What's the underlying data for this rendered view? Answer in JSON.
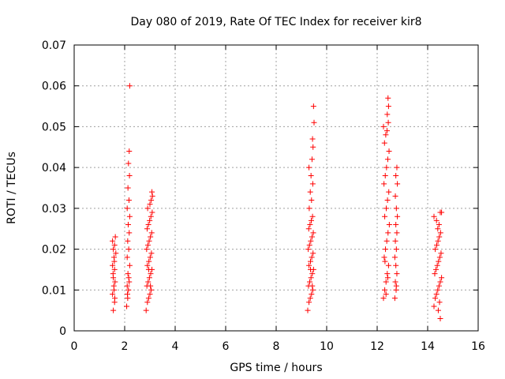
{
  "chart_data": {
    "type": "scatter",
    "title": "Day 080 of 2019, Rate Of TEC Index for receiver kir8",
    "xlabel": "GPS time / hours",
    "ylabel": "ROTI / TECUs",
    "xlim": [
      0,
      16
    ],
    "ylim": [
      0,
      0.07
    ],
    "x_ticks": [
      "0",
      "2",
      "4",
      "6",
      "8",
      "10",
      "12",
      "14",
      "16"
    ],
    "y_ticks": [
      "0",
      "0.01",
      "0.02",
      "0.03",
      "0.04",
      "0.05",
      "0.06",
      "0.07"
    ],
    "grid": true,
    "marker": "+",
    "color": "#ff0000",
    "series": [
      {
        "name": "ROTI",
        "points": [
          [
            1.55,
            0.005
          ],
          [
            1.6,
            0.007
          ],
          [
            1.52,
            0.009
          ],
          [
            1.58,
            0.01
          ],
          [
            1.62,
            0.012
          ],
          [
            1.55,
            0.013
          ],
          [
            1.6,
            0.015
          ],
          [
            1.52,
            0.016
          ],
          [
            1.58,
            0.018
          ],
          [
            1.65,
            0.019
          ],
          [
            1.55,
            0.02
          ],
          [
            1.6,
            0.021
          ],
          [
            1.52,
            0.022
          ],
          [
            1.63,
            0.023
          ],
          [
            1.57,
            0.011
          ],
          [
            1.61,
            0.008
          ],
          [
            1.54,
            0.014
          ],
          [
            1.59,
            0.017
          ],
          [
            2.08,
            0.006
          ],
          [
            2.12,
            0.008
          ],
          [
            2.15,
            0.01
          ],
          [
            2.1,
            0.011
          ],
          [
            2.18,
            0.012
          ],
          [
            2.13,
            0.014
          ],
          [
            2.2,
            0.016
          ],
          [
            2.1,
            0.018
          ],
          [
            2.16,
            0.02
          ],
          [
            2.12,
            0.022
          ],
          [
            2.18,
            0.024
          ],
          [
            2.14,
            0.026
          ],
          [
            2.2,
            0.028
          ],
          [
            2.1,
            0.03
          ],
          [
            2.17,
            0.032
          ],
          [
            2.13,
            0.035
          ],
          [
            2.19,
            0.038
          ],
          [
            2.15,
            0.041
          ],
          [
            2.18,
            0.044
          ],
          [
            2.2,
            0.06
          ],
          [
            2.11,
            0.009
          ],
          [
            2.16,
            0.013
          ],
          [
            2.85,
            0.005
          ],
          [
            2.9,
            0.007
          ],
          [
            2.95,
            0.008
          ],
          [
            3.0,
            0.009
          ],
          [
            3.05,
            0.01
          ],
          [
            2.88,
            0.011
          ],
          [
            2.93,
            0.012
          ],
          [
            2.98,
            0.013
          ],
          [
            3.03,
            0.014
          ],
          [
            3.08,
            0.015
          ],
          [
            2.9,
            0.016
          ],
          [
            2.96,
            0.017
          ],
          [
            3.01,
            0.018
          ],
          [
            3.06,
            0.019
          ],
          [
            2.87,
            0.02
          ],
          [
            2.92,
            0.021
          ],
          [
            2.97,
            0.022
          ],
          [
            3.02,
            0.023
          ],
          [
            3.07,
            0.024
          ],
          [
            2.89,
            0.025
          ],
          [
            2.94,
            0.026
          ],
          [
            2.99,
            0.027
          ],
          [
            3.04,
            0.028
          ],
          [
            3.09,
            0.029
          ],
          [
            2.91,
            0.03
          ],
          [
            3.0,
            0.031
          ],
          [
            3.05,
            0.032
          ],
          [
            3.1,
            0.033
          ],
          [
            3.08,
            0.034
          ],
          [
            2.95,
            0.015
          ],
          [
            3.02,
            0.011
          ],
          [
            9.25,
            0.005
          ],
          [
            9.3,
            0.007
          ],
          [
            9.35,
            0.008
          ],
          [
            9.4,
            0.009
          ],
          [
            9.45,
            0.01
          ],
          [
            9.28,
            0.011
          ],
          [
            9.33,
            0.012
          ],
          [
            9.38,
            0.013
          ],
          [
            9.43,
            0.014
          ],
          [
            9.48,
            0.015
          ],
          [
            9.3,
            0.016
          ],
          [
            9.36,
            0.017
          ],
          [
            9.41,
            0.018
          ],
          [
            9.46,
            0.019
          ],
          [
            9.27,
            0.02
          ],
          [
            9.32,
            0.021
          ],
          [
            9.37,
            0.022
          ],
          [
            9.42,
            0.023
          ],
          [
            9.47,
            0.024
          ],
          [
            9.29,
            0.025
          ],
          [
            9.34,
            0.026
          ],
          [
            9.39,
            0.027
          ],
          [
            9.44,
            0.028
          ],
          [
            9.31,
            0.03
          ],
          [
            9.4,
            0.032
          ],
          [
            9.35,
            0.034
          ],
          [
            9.45,
            0.036
          ],
          [
            9.38,
            0.038
          ],
          [
            9.3,
            0.04
          ],
          [
            9.42,
            0.042
          ],
          [
            9.46,
            0.045
          ],
          [
            9.44,
            0.047
          ],
          [
            9.5,
            0.051
          ],
          [
            9.48,
            0.055
          ],
          [
            9.36,
            0.015
          ],
          [
            9.43,
            0.011
          ],
          [
            12.25,
            0.008
          ],
          [
            12.3,
            0.01
          ],
          [
            12.35,
            0.012
          ],
          [
            12.4,
            0.014
          ],
          [
            12.45,
            0.016
          ],
          [
            12.28,
            0.018
          ],
          [
            12.33,
            0.02
          ],
          [
            12.38,
            0.022
          ],
          [
            12.43,
            0.024
          ],
          [
            12.48,
            0.026
          ],
          [
            12.3,
            0.028
          ],
          [
            12.36,
            0.03
          ],
          [
            12.41,
            0.032
          ],
          [
            12.46,
            0.034
          ],
          [
            12.27,
            0.036
          ],
          [
            12.32,
            0.038
          ],
          [
            12.37,
            0.04
          ],
          [
            12.42,
            0.042
          ],
          [
            12.47,
            0.044
          ],
          [
            12.29,
            0.046
          ],
          [
            12.34,
            0.048
          ],
          [
            12.39,
            0.049
          ],
          [
            12.25,
            0.05
          ],
          [
            12.44,
            0.051
          ],
          [
            12.4,
            0.053
          ],
          [
            12.45,
            0.055
          ],
          [
            12.43,
            0.057
          ],
          [
            12.35,
            0.009
          ],
          [
            12.42,
            0.013
          ],
          [
            12.31,
            0.017
          ],
          [
            12.7,
            0.008
          ],
          [
            12.75,
            0.01
          ],
          [
            12.72,
            0.012
          ],
          [
            12.78,
            0.014
          ],
          [
            12.74,
            0.016
          ],
          [
            12.7,
            0.018
          ],
          [
            12.76,
            0.02
          ],
          [
            12.72,
            0.022
          ],
          [
            12.78,
            0.024
          ],
          [
            12.74,
            0.026
          ],
          [
            12.8,
            0.028
          ],
          [
            12.76,
            0.03
          ],
          [
            12.72,
            0.033
          ],
          [
            12.8,
            0.036
          ],
          [
            12.74,
            0.038
          ],
          [
            12.78,
            0.04
          ],
          [
            12.76,
            0.011
          ],
          [
            14.25,
            0.006
          ],
          [
            14.3,
            0.008
          ],
          [
            14.35,
            0.009
          ],
          [
            14.4,
            0.01
          ],
          [
            14.45,
            0.011
          ],
          [
            14.5,
            0.012
          ],
          [
            14.55,
            0.013
          ],
          [
            14.28,
            0.014
          ],
          [
            14.33,
            0.015
          ],
          [
            14.38,
            0.016
          ],
          [
            14.43,
            0.017
          ],
          [
            14.48,
            0.018
          ],
          [
            14.53,
            0.019
          ],
          [
            14.3,
            0.02
          ],
          [
            14.36,
            0.021
          ],
          [
            14.41,
            0.022
          ],
          [
            14.46,
            0.023
          ],
          [
            14.51,
            0.024
          ],
          [
            14.4,
            0.025
          ],
          [
            14.45,
            0.026
          ],
          [
            14.35,
            0.027
          ],
          [
            14.25,
            0.028
          ],
          [
            14.5,
            0.029
          ],
          [
            14.55,
            0.029
          ],
          [
            14.5,
            0.003
          ],
          [
            14.42,
            0.005
          ],
          [
            14.47,
            0.007
          ]
        ]
      }
    ]
  }
}
